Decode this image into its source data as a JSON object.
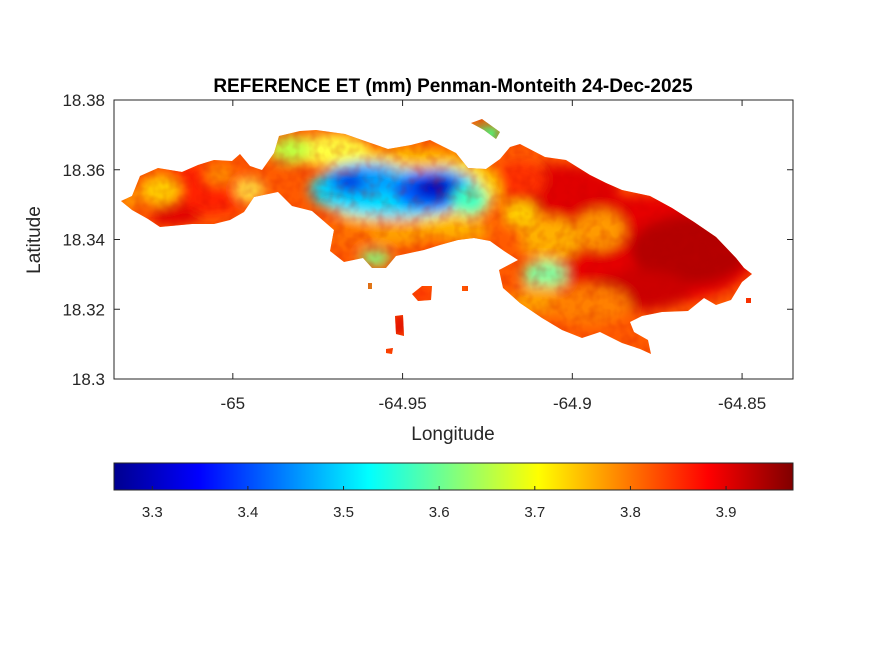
{
  "chart_data": {
    "type": "heatmap",
    "title": "REFERENCE ET (mm) Penman-Monteith 24-Dec-2025",
    "xlabel": "Longitude",
    "ylabel": "Latitude",
    "xlim": [
      -65.035,
      -64.835
    ],
    "ylim": [
      18.3,
      18.38
    ],
    "xticks": [
      -65,
      -64.95,
      -64.9,
      -64.85
    ],
    "xtick_labels": [
      "-65",
      "-64.95",
      "-64.9",
      "-64.85"
    ],
    "yticks": [
      18.3,
      18.32,
      18.34,
      18.36,
      18.38
    ],
    "ytick_labels": [
      "18.3",
      "18.32",
      "18.34",
      "18.36",
      "18.38"
    ],
    "colorbar": {
      "colormap": "jet",
      "range": [
        3.26,
        3.97
      ],
      "ticks": [
        3.3,
        3.4,
        3.5,
        3.6,
        3.7,
        3.8,
        3.9
      ],
      "tick_labels": [
        "3.3",
        "3.4",
        "3.5",
        "3.6",
        "3.7",
        "3.8",
        "3.9"
      ],
      "orientation": "horizontal"
    },
    "grid": false,
    "field_description_regions": [
      {
        "region": "central north (around -64.955, 18.354)",
        "approx_value": 3.3
      },
      {
        "region": "central north surrounding (around -64.98, 18.356)",
        "approx_value": 3.5
      },
      {
        "region": "northwest ridge (around -64.99, 18.362)",
        "approx_value": 3.7
      },
      {
        "region": "western arm (around -65.02, 18.350)",
        "approx_value": 3.8
      },
      {
        "region": "eastern peninsula (around -64.87, 18.335)",
        "approx_value": 3.95
      },
      {
        "region": "south-central small pocket (around -64.913, 18.331)",
        "approx_value": 3.55
      }
    ]
  }
}
